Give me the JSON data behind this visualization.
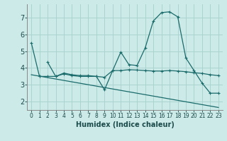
{
  "background_color": "#cceae7",
  "grid_color": "#aad4d0",
  "line_color": "#1a6b6b",
  "xlabel": "Humidex (Indice chaleur)",
  "xlim": [
    -0.5,
    23.5
  ],
  "ylim": [
    1.5,
    7.8
  ],
  "yticks": [
    2,
    3,
    4,
    5,
    6,
    7
  ],
  "xticks": [
    0,
    1,
    2,
    3,
    4,
    5,
    6,
    7,
    8,
    9,
    10,
    11,
    12,
    13,
    14,
    15,
    16,
    17,
    18,
    19,
    20,
    21,
    22,
    23
  ],
  "series": [
    {
      "x": [
        0,
        1
      ],
      "y": [
        5.5,
        3.5
      ],
      "markers": true
    },
    {
      "x": [
        2,
        3,
        4,
        5,
        6,
        7,
        8,
        9,
        10,
        11,
        12,
        13,
        14,
        15,
        16,
        17,
        18,
        19,
        20,
        21,
        22,
        23
      ],
      "y": [
        4.35,
        3.5,
        3.65,
        3.55,
        3.5,
        3.5,
        3.5,
        2.7,
        3.85,
        4.95,
        4.2,
        4.15,
        5.2,
        6.8,
        7.3,
        7.35,
        7.05,
        4.6,
        3.85,
        3.1,
        2.5,
        2.5
      ],
      "markers": true
    },
    {
      "x": [
        0,
        23
      ],
      "y": [
        3.6,
        1.65
      ],
      "markers": false
    },
    {
      "x": [
        1,
        2,
        3,
        4,
        5,
        6,
        7,
        8,
        9,
        10,
        11,
        12,
        13,
        14,
        15,
        16,
        17,
        18,
        19,
        20,
        21,
        22,
        23
      ],
      "y": [
        3.5,
        3.5,
        3.5,
        3.7,
        3.6,
        3.55,
        3.55,
        3.5,
        3.45,
        3.85,
        3.85,
        3.9,
        3.88,
        3.85,
        3.82,
        3.82,
        3.85,
        3.82,
        3.78,
        3.72,
        3.68,
        3.6,
        3.55
      ],
      "markers": true
    }
  ]
}
